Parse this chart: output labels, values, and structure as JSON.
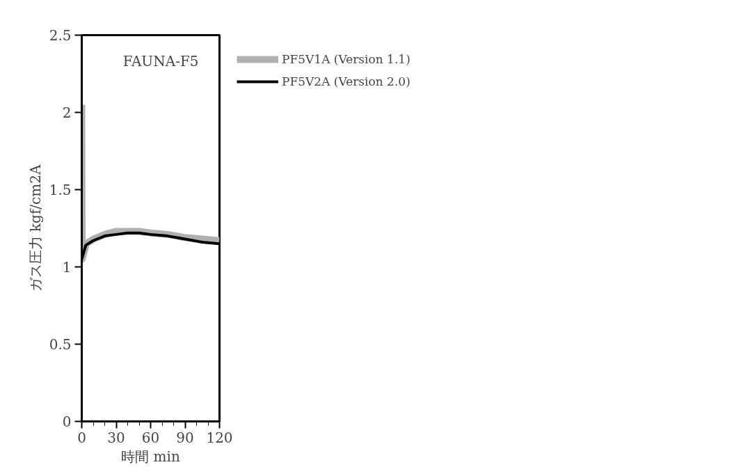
{
  "chart_data": {
    "type": "line",
    "xlabel": "時間 min",
    "ylabel": "ガス圧力 kgf/cm2A",
    "annotations": [
      "FAUNA-F5"
    ],
    "xlim": [
      0,
      120
    ],
    "ylim": [
      0,
      2.5
    ],
    "xticks": [
      0,
      {
        "value": 10,
        "label": null
      },
      {
        "value": 20,
        "label": null
      },
      30,
      {
        "value": 40,
        "label": null
      },
      {
        "value": 50,
        "label": null
      },
      60,
      {
        "value": 70,
        "label": null
      },
      {
        "value": 80,
        "label": null
      },
      90,
      {
        "value": 100,
        "label": null
      },
      {
        "value": 110,
        "label": null
      },
      120
    ],
    "yticks": [
      0,
      0.5,
      1,
      1.5,
      2,
      2.5
    ],
    "grid": false,
    "legend": "top right",
    "marker": "none",
    "line_style": "solid",
    "series": [
      {
        "name": "PF5V1A (Version 1.1)",
        "color": "#b0b0b0",
        "x": [
          0,
          0.3,
          4,
          10,
          20,
          30,
          40,
          50,
          60,
          75,
          90,
          105,
          120
        ],
        "values": [
          2.05,
          1.05,
          1.15,
          1.18,
          1.21,
          1.23,
          1.23,
          1.23,
          1.22,
          1.21,
          1.19,
          1.18,
          1.17
        ]
      },
      {
        "name": "PF5V2A (Version 2.0)",
        "color": "#000000",
        "x": [
          0,
          3.5,
          10,
          20,
          30,
          40,
          50,
          60,
          75,
          90,
          105,
          120
        ],
        "values": [
          1.05,
          1.14,
          1.17,
          1.2,
          1.21,
          1.22,
          1.22,
          1.21,
          1.2,
          1.18,
          1.16,
          1.15
        ]
      }
    ]
  }
}
